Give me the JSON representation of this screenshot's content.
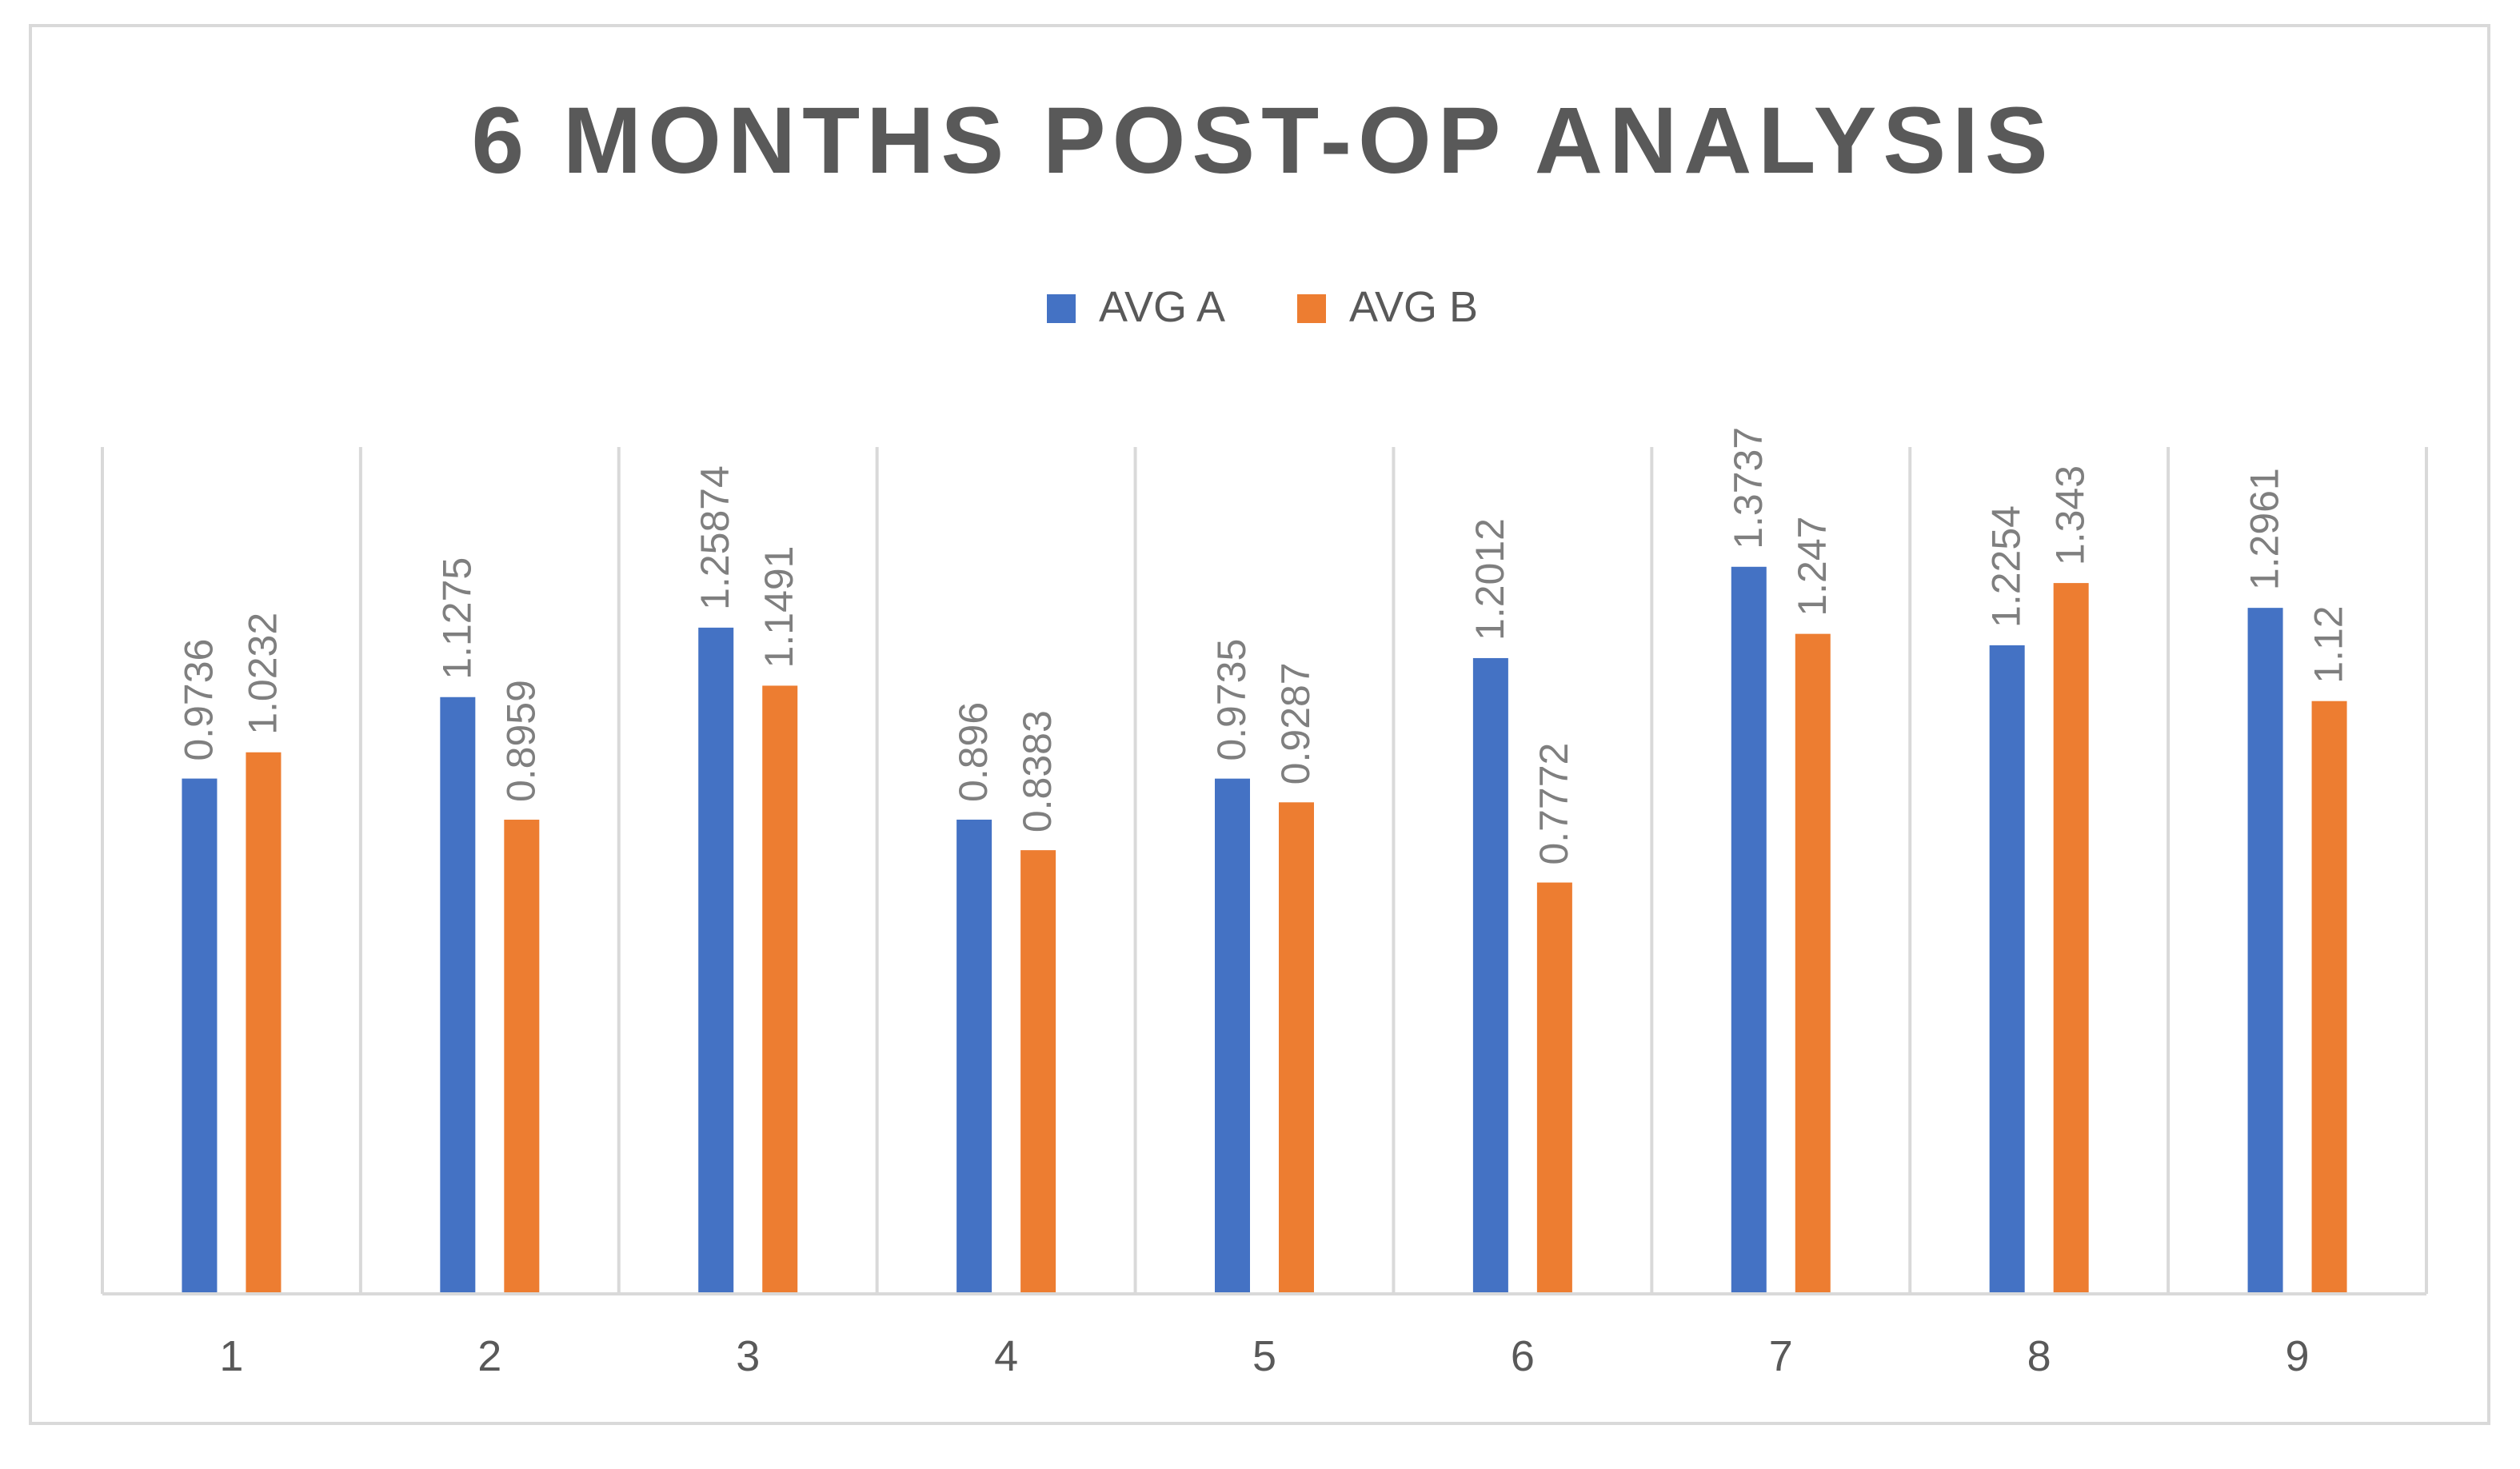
{
  "chart_data": {
    "type": "bar",
    "title": "6 MONTHS POST-OP ANALYSIS",
    "xlabel": "",
    "ylabel": "",
    "categories": [
      "1",
      "2",
      "3",
      "4",
      "5",
      "6",
      "7",
      "8",
      "9"
    ],
    "series": [
      {
        "name": "AVG A",
        "color": "#4472c4",
        "values": [
          0.9736,
          1.1275,
          1.25874,
          0.896,
          0.9735,
          1.2012,
          1.3737,
          1.2254,
          1.2961
        ],
        "labels": [
          "0.9736",
          "1.1275",
          "1.25874",
          "0.896",
          "0.9735",
          "1.2012",
          "1.3737",
          "1.2254",
          "1.2961"
        ]
      },
      {
        "name": "AVG B",
        "color": "#ed7d31",
        "values": [
          1.0232,
          0.8959,
          1.1491,
          0.8383,
          0.9287,
          0.7772,
          1.247,
          1.343,
          1.12
        ],
        "labels": [
          "1.0232",
          "0.8959",
          "1.1491",
          "0.8383",
          "0.9287",
          "0.7772",
          "1.247",
          "1.343",
          "1.12"
        ]
      }
    ],
    "ylim": [
      0,
      1.6
    ],
    "grid": "vertical-category-separators",
    "legend": "top-center",
    "data_label_orientation": "vertical"
  }
}
